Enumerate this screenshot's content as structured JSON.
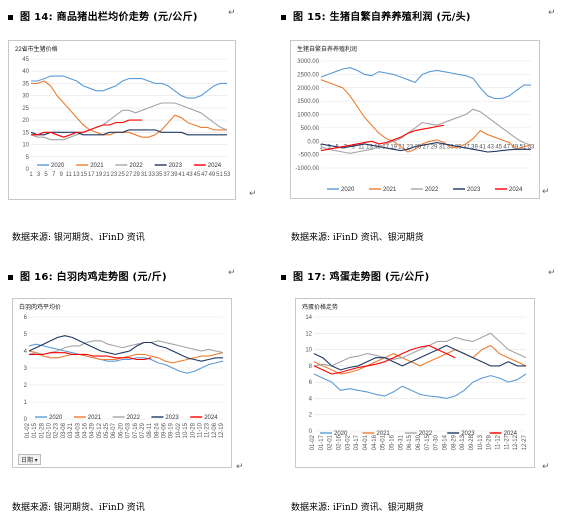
{
  "figures": [
    {
      "id": "fig14",
      "caption": "图 14: 商品猪出栏均价走势 (元/公斤)",
      "chart_title": "22省市生猪价格",
      "source": "数据来源: 银河期货、iFinD 资讯",
      "chart_data": {
        "type": "line",
        "ylim": [
          0,
          45
        ],
        "yticks": [
          "0",
          "5",
          "10",
          "15",
          "20",
          "25",
          "30",
          "35",
          "40",
          "45"
        ],
        "xticks": [
          "1",
          "3",
          "5",
          "7",
          "9",
          "11",
          "13",
          "15",
          "17",
          "19",
          "21",
          "23",
          "25",
          "27",
          "29",
          "31",
          "33",
          "35",
          "37",
          "39",
          "41",
          "43",
          "45",
          "47",
          "49",
          "51",
          "53"
        ],
        "legend": [
          "2020",
          "2021",
          "2022",
          "2023",
          "2024"
        ],
        "series": [
          {
            "name": "2020",
            "color": "#5b9bd5",
            "values": [
              36,
              36,
              37,
              38,
              38,
              38,
              37,
              36,
              34,
              33,
              32,
              32,
              33,
              34,
              36,
              37,
              37,
              37,
              36,
              35,
              35,
              34,
              32,
              30,
              29,
              29,
              30,
              32,
              34,
              35,
              35
            ]
          },
          {
            "name": "2021",
            "color": "#ed7d31",
            "values": [
              35,
              35,
              36,
              34,
              30,
              27,
              24,
              21,
              18,
              16,
              15,
              14,
              14,
              15,
              15,
              15,
              14,
              13,
              13,
              14,
              16,
              19,
              22,
              21,
              19,
              18,
              17,
              17,
              16,
              16,
              16
            ]
          },
          {
            "name": "2022",
            "color": "#a5a5a5",
            "values": [
              14,
              13,
              13,
              12,
              12,
              12,
              13,
              14,
              15,
              16,
              17,
              18,
              20,
              22,
              24,
              24,
              23,
              24,
              25,
              26,
              27,
              27,
              27,
              26,
              25,
              24,
              23,
              21,
              19,
              17,
              16
            ]
          },
          {
            "name": "2023",
            "color": "#203864",
            "values": [
              15,
              14,
              14,
              15,
              15,
              15,
              15,
              15,
              14,
              14,
              14,
              14,
              15,
              15,
              15,
              16,
              16,
              16,
              16,
              16,
              15,
              15,
              15,
              15,
              14,
              14,
              14,
              14,
              14,
              14,
              14
            ]
          },
          {
            "name": "2024",
            "color": "#ff0000",
            "values": [
              14,
              14,
              15,
              15,
              14,
              13,
              14,
              15,
              15,
              16,
              17,
              18,
              18,
              19,
              19,
              20,
              20,
              20
            ]
          }
        ]
      }
    },
    {
      "id": "fig15",
      "caption": "图 15: 生猪自繁自养养殖利润 (元/头)",
      "chart_title": "生猪自繁自养养殖利润",
      "source": "数据来源: iFinD 资讯、银河期货",
      "chart_data": {
        "type": "line",
        "ylim": [
          -1000,
          3000
        ],
        "yticks": [
          "-1000.00",
          "-500.00",
          "0.00",
          "500.00",
          "1000.00",
          "1500.00",
          "2000.00",
          "2500.00",
          "3000.00"
        ],
        "xticks": [
          "1",
          "3",
          "5",
          "7",
          "9",
          "11",
          "13",
          "15",
          "17",
          "19",
          "21",
          "23",
          "25",
          "27",
          "29",
          "31",
          "33",
          "35",
          "37",
          "39",
          "41",
          "43",
          "45",
          "47",
          "49",
          "51",
          "53"
        ],
        "legend": [
          "2020",
          "2021",
          "2022",
          "2023",
          "2024"
        ],
        "series": [
          {
            "name": "2020",
            "color": "#5b9bd5",
            "values": [
              2400,
              2500,
              2600,
              2700,
              2750,
              2650,
              2500,
              2450,
              2600,
              2550,
              2500,
              2400,
              2300,
              2200,
              2500,
              2600,
              2650,
              2600,
              2550,
              2500,
              2450,
              2350,
              2000,
              1700,
              1600,
              1600,
              1700,
              1900,
              2100,
              2100
            ]
          },
          {
            "name": "2021",
            "color": "#ed7d31",
            "values": [
              2300,
              2200,
              2100,
              2000,
              1700,
              1300,
              900,
              600,
              300,
              100,
              0,
              -200,
              -400,
              -300,
              -100,
              0,
              50,
              -50,
              -250,
              -200,
              -100,
              100,
              400,
              250,
              150,
              50,
              -50,
              -300,
              -200,
              -150
            ]
          },
          {
            "name": "2022",
            "color": "#a5a5a5",
            "values": [
              -200,
              -300,
              -350,
              -400,
              -450,
              -400,
              -350,
              -300,
              -200,
              -100,
              0,
              100,
              300,
              500,
              700,
              650,
              600,
              700,
              800,
              900,
              1000,
              1200,
              1100,
              900,
              700,
              500,
              300,
              100,
              -50,
              -150
            ]
          },
          {
            "name": "2023",
            "color": "#203864",
            "values": [
              -100,
              -150,
              -200,
              -250,
              -200,
              -150,
              -100,
              -150,
              -200,
              -250,
              -300,
              -350,
              -300,
              -200,
              -150,
              -100,
              -50,
              -100,
              -150,
              -200,
              -250,
              -300,
              -350,
              -400,
              -380,
              -350,
              -320,
              -300,
              -300,
              -300
            ]
          },
          {
            "name": "2024",
            "color": "#ff0000",
            "values": [
              -350,
              -300,
              -250,
              -200,
              -150,
              -100,
              -50,
              0,
              -100,
              -50,
              50,
              150,
              300,
              400,
              450,
              500,
              550,
              600
            ]
          }
        ]
      }
    },
    {
      "id": "fig16",
      "caption": "图 16: 白羽肉鸡走势图 (元/斤)",
      "chart_title": "白羽肉鸡平均价",
      "source": "数据来源: 银河期货、iFinD 资讯",
      "filter_label": "日期",
      "chart_data": {
        "type": "line",
        "ylim": [
          0,
          6
        ],
        "yticks": [
          "0",
          "1",
          "2",
          "3",
          "4",
          "5",
          "6"
        ],
        "xticks": [
          "01-02",
          "01-15",
          "01-28",
          "02-10",
          "02-23",
          "03-08",
          "03-21",
          "04-03",
          "04-16",
          "04-29",
          "05-12",
          "05-25",
          "06-07",
          "06-20",
          "07-03",
          "07-16",
          "07-29",
          "08-11",
          "08-24",
          "09-06",
          "09-19",
          "10-02",
          "10-15",
          "10-28",
          "11-10",
          "11-23",
          "12-06",
          "12-19"
        ],
        "legend": [
          "2020",
          "2021",
          "2022",
          "2023",
          "2024"
        ],
        "series": [
          {
            "name": "2020",
            "color": "#5b9bd5",
            "values": [
              4.3,
              4.4,
              4.3,
              4.2,
              4.1,
              4.0,
              3.9,
              3.8,
              3.7,
              3.6,
              3.5,
              3.4,
              3.4,
              3.5,
              3.5,
              3.6,
              3.6,
              3.5,
              3.3,
              3.2,
              3.0,
              2.8,
              2.7,
              2.8,
              3.0,
              3.2,
              3.3,
              3.4
            ]
          },
          {
            "name": "2021",
            "color": "#ed7d31",
            "values": [
              4.0,
              3.9,
              3.7,
              3.6,
              3.6,
              3.7,
              3.8,
              3.8,
              3.7,
              3.6,
              3.5,
              3.5,
              3.5,
              3.6,
              3.7,
              3.8,
              3.8,
              3.7,
              3.6,
              3.4,
              3.3,
              3.4,
              3.5,
              3.6,
              3.7,
              3.7,
              3.8,
              3.9
            ]
          },
          {
            "name": "2022",
            "color": "#a5a5a5",
            "values": [
              3.8,
              3.9,
              3.8,
              3.9,
              4.0,
              4.2,
              4.3,
              4.3,
              4.5,
              4.6,
              4.6,
              4.4,
              4.3,
              4.2,
              4.3,
              4.4,
              4.5,
              4.5,
              4.6,
              4.5,
              4.4,
              4.3,
              4.2,
              4.1,
              4.0,
              4.1,
              4.0,
              3.9
            ]
          },
          {
            "name": "2023",
            "color": "#203864",
            "values": [
              4.0,
              4.2,
              4.4,
              4.6,
              4.8,
              4.9,
              4.8,
              4.6,
              4.4,
              4.2,
              4.0,
              3.9,
              3.8,
              3.9,
              4.0,
              4.3,
              4.5,
              4.5,
              4.3,
              4.2,
              4.0,
              3.8,
              3.6,
              3.5,
              3.4,
              3.5,
              3.6,
              3.6
            ]
          },
          {
            "name": "2024",
            "color": "#ff0000",
            "values": [
              3.8,
              3.8,
              3.8,
              3.9,
              3.9,
              3.9,
              3.8,
              3.8,
              3.8,
              3.7,
              3.7,
              3.7,
              3.6,
              3.6,
              3.6,
              3.5,
              3.5,
              3.6
            ]
          }
        ]
      }
    },
    {
      "id": "fig17",
      "caption": "图 17: 鸡蛋走势图 (元/公斤)",
      "chart_title": "鸡蛋价格走势",
      "source": "数据来源: iFinD 资讯、银河期货",
      "chart_data": {
        "type": "line",
        "ylim": [
          0,
          14
        ],
        "yticks": [
          "0",
          "2",
          "4",
          "6",
          "8",
          "10",
          "12",
          "14"
        ],
        "xticks": [
          "01-02",
          "01-17",
          "02-01",
          "02-16",
          "03-02",
          "03-17",
          "04-01",
          "04-16",
          "05-01",
          "05-16",
          "05-31",
          "06-15",
          "06-30",
          "07-15",
          "07-30",
          "08-14",
          "08-29",
          "09-13",
          "09-28",
          "10-13",
          "10-28",
          "11-12",
          "11-27",
          "12-12",
          "12-27"
        ],
        "legend": [
          "2020",
          "2021",
          "2022",
          "2023",
          "2024"
        ],
        "series": [
          {
            "name": "2020",
            "color": "#5b9bd5",
            "values": [
              7.0,
              6.5,
              6.0,
              5.0,
              5.2,
              5.0,
              4.8,
              4.5,
              4.3,
              4.8,
              5.5,
              5.0,
              4.5,
              4.3,
              4.2,
              4.0,
              4.3,
              5.0,
              6.0,
              6.5,
              6.8,
              6.5,
              6.0,
              6.3,
              7.0
            ]
          },
          {
            "name": "2021",
            "color": "#ed7d31",
            "values": [
              8.5,
              8.0,
              7.5,
              7.0,
              7.2,
              7.5,
              8.0,
              8.5,
              9.0,
              9.5,
              9.0,
              8.5,
              8.0,
              8.5,
              9.0,
              9.5,
              10.0,
              9.5,
              9.0,
              10.0,
              10.5,
              9.5,
              9.0,
              8.5,
              8.0
            ]
          },
          {
            "name": "2022",
            "color": "#a5a5a5",
            "values": [
              8.0,
              8.2,
              8.0,
              8.5,
              9.0,
              9.2,
              9.5,
              9.3,
              9.0,
              8.8,
              9.0,
              9.5,
              10.0,
              10.5,
              11.0,
              11.0,
              11.5,
              11.2,
              11.0,
              11.5,
              12.0,
              11.0,
              10.0,
              9.5,
              9.0
            ]
          },
          {
            "name": "2023",
            "color": "#203864",
            "values": [
              9.5,
              9.0,
              8.0,
              7.5,
              7.8,
              8.0,
              8.5,
              9.0,
              9.0,
              8.5,
              8.0,
              8.5,
              9.0,
              9.5,
              10.0,
              10.5,
              10.0,
              9.5,
              9.0,
              8.5,
              8.0,
              8.0,
              8.5,
              8.0,
              8.0
            ]
          },
          {
            "name": "2024",
            "color": "#ff0000",
            "values": [
              8.0,
              7.5,
              7.0,
              7.2,
              7.5,
              7.8,
              8.0,
              8.2,
              8.5,
              9.0,
              9.5,
              10.0,
              10.3,
              10.5,
              10.0,
              9.5,
              9.0
            ]
          }
        ]
      }
    }
  ]
}
